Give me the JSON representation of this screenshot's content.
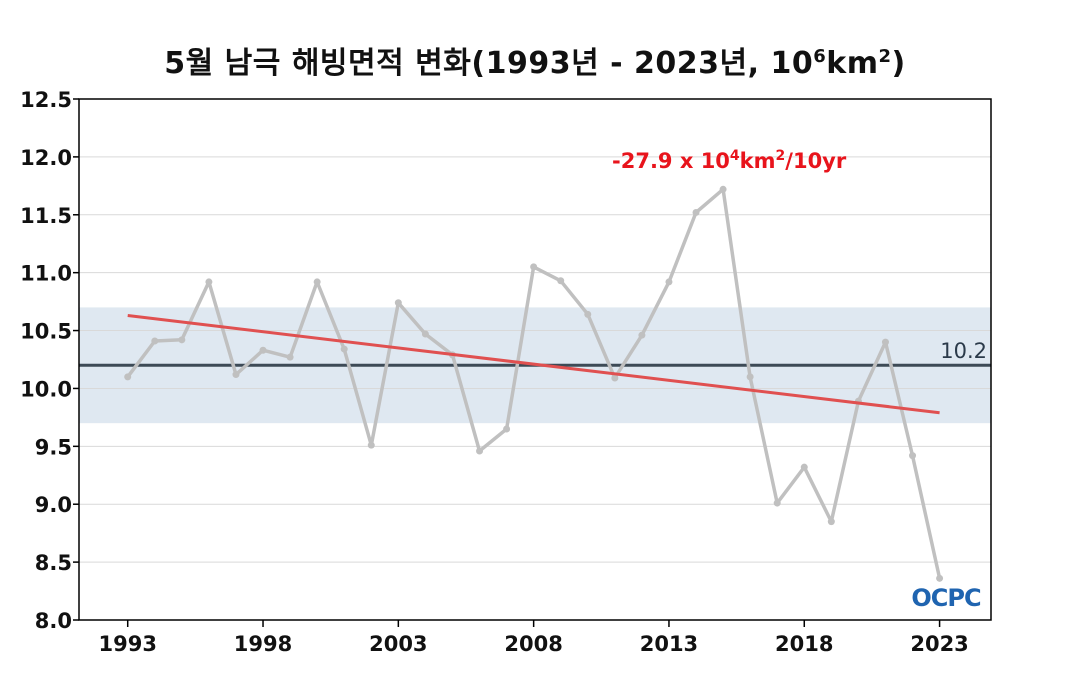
{
  "title": {
    "main": "5월 남극 해빙면적 변화(1993년 - 2023년, 10",
    "sup1": "6",
    "mid": "km",
    "sup2": "2",
    "end": ")"
  },
  "trend_label": {
    "prefix": "-27.9 x 10",
    "sup1": "4",
    "mid": "km",
    "sup2": "2",
    "suffix": "/10yr"
  },
  "mean_label": "10.2",
  "logo": "OCPC",
  "colors": {
    "series": "#c0c0c0",
    "trend": "#e05050",
    "trend_text": "#e8141c",
    "mean": "#3d4a56",
    "band": "#dfe8f1",
    "grid": "#d9d9d9"
  },
  "chart_data": {
    "type": "line",
    "x": [
      1993,
      1994,
      1995,
      1996,
      1997,
      1998,
      1999,
      2000,
      2001,
      2002,
      2003,
      2004,
      2005,
      2006,
      2007,
      2008,
      2009,
      2010,
      2011,
      2012,
      2013,
      2014,
      2015,
      2016,
      2017,
      2018,
      2019,
      2020,
      2021,
      2022,
      2023
    ],
    "series": [
      {
        "values": [
          10.1,
          10.41,
          10.42,
          10.92,
          10.12,
          10.33,
          10.27,
          10.92,
          10.34,
          9.51,
          10.74,
          10.47,
          10.29,
          9.46,
          9.65,
          11.05,
          10.93,
          10.64,
          10.09,
          10.46,
          10.92,
          11.52,
          11.72,
          10.1,
          9.01,
          9.32,
          8.85,
          9.89,
          10.4,
          9.42,
          8.36
        ]
      }
    ],
    "trend": {
      "start": [
        1993,
        10.63
      ],
      "end": [
        2023,
        9.79
      ],
      "slope_text": "-27.9 x 10^4km^2/10yr"
    },
    "mean": 10.2,
    "band": [
      9.7,
      10.7
    ],
    "ylim": [
      8.0,
      12.5
    ],
    "xlim": [
      1991.2,
      2024.9
    ],
    "yticks": [
      "8.0",
      "8.5",
      "9.0",
      "9.5",
      "10.0",
      "10.5",
      "11.0",
      "11.5",
      "12.0",
      "12.5"
    ],
    "xticks": [
      "1993",
      "1998",
      "2003",
      "2008",
      "2013",
      "2018",
      "2023"
    ],
    "grid": true
  }
}
